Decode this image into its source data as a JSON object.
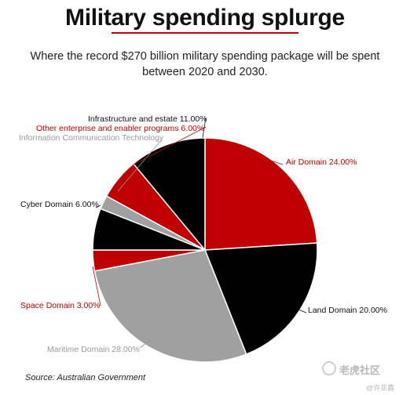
{
  "header": {
    "title": "Military spending splurge",
    "subtitle": "Where the record $270 billion military spending package will be spent between 2020 and 2030."
  },
  "footer": {
    "source": "Source: Australian Government",
    "watermark": "老虎社区",
    "watermark_sub": "@许亚鑫"
  },
  "chart_data": {
    "type": "pie",
    "slices": [
      {
        "label": "Air Domain 24.00%",
        "value": 24.0,
        "color": "#c00000",
        "label_color": "#c00000"
      },
      {
        "label": "Land Domain 20.00%",
        "value": 20.0,
        "color": "#000000",
        "label_color": "#111111"
      },
      {
        "label": "Maritime Domain 28.00%",
        "value": 28.0,
        "color": "#a0a0a0",
        "label_color": "#999999"
      },
      {
        "label": "Space Domain 3.00%",
        "value": 3.0,
        "color": "#c00000",
        "label_color": "#c00000"
      },
      {
        "label": "Cyber Domain 6.00%",
        "value": 6.0,
        "color": "#000000",
        "label_color": "#111111"
      },
      {
        "label": "Information Communication Technology",
        "value": 2.0,
        "color": "#a0a0a0",
        "label_color": "#999999"
      },
      {
        "label": "Other enterprise and enabler programs 6.00%",
        "value": 6.0,
        "color": "#c00000",
        "label_color": "#c00000"
      },
      {
        "label": "Infrastructure and estate 11.00%",
        "value": 11.0,
        "color": "#000000",
        "label_color": "#111111"
      }
    ]
  }
}
